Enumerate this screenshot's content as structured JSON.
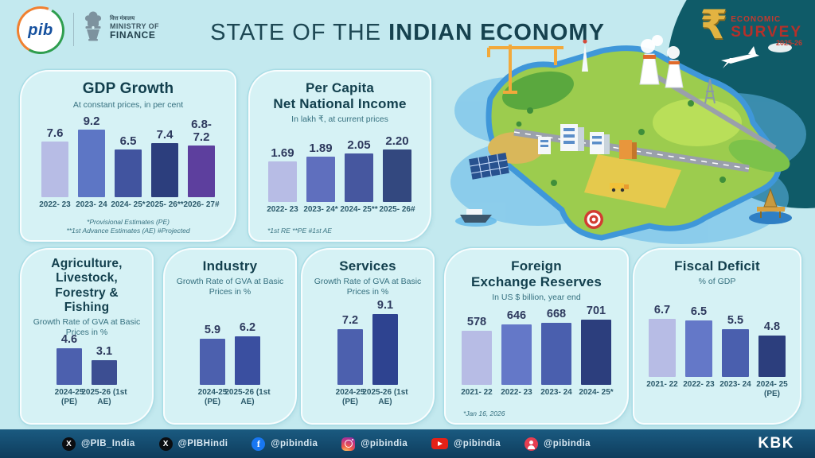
{
  "header": {
    "pib_logo_text": "pib",
    "ministry_hindi": "वित्त मंत्रालय",
    "ministry_line1": "MINISTRY OF",
    "ministry_line2": "FINANCE",
    "title_regular": "STATE OF THE ",
    "title_bold": "INDIAN ECONOMY",
    "survey_badge": {
      "rupee": "₹",
      "line1": "ECONOMIC",
      "line2": "SURVEY",
      "line3": "2025-26"
    }
  },
  "chart_data": [
    {
      "type": "bar",
      "title": "GDP Growth",
      "subtitle": "At constant prices, in per cent",
      "categories": [
        "2022- 23",
        "2023- 24",
        "2024- 25*",
        "2025- 26**",
        "2026- 27#"
      ],
      "values": [
        7.6,
        9.2,
        6.5,
        7.4,
        7.0
      ],
      "value_labels": [
        "7.6",
        "9.2",
        "6.5",
        "7.4",
        "6.8- 7.2"
      ],
      "colors": [
        "#b7bce5",
        "#5d76c5",
        "#41549f",
        "#2c3e7d",
        "#5d3f9e"
      ],
      "footnote": "*Provisional Estimates (PE)\n**1st Advance Estimates (AE)  #Projected",
      "ylim": [
        0,
        9.2
      ]
    },
    {
      "type": "bar",
      "title": "Per Capita\nNet National Income",
      "subtitle": "In lakh ₹, at current prices",
      "categories": [
        "2022- 23",
        "2023- 24*",
        "2024- 25**",
        "2025- 26#"
      ],
      "values": [
        1.69,
        1.89,
        2.05,
        2.2
      ],
      "value_labels": [
        "1.69",
        "1.89",
        "2.05",
        "2.20"
      ],
      "colors": [
        "#b7bce5",
        "#5f6fbe",
        "#46579f",
        "#33487f"
      ],
      "footnote": "*1st RE  **PE  #1st AE",
      "ylim": [
        0,
        2.2
      ]
    },
    {
      "type": "bar",
      "title": "Agriculture,\nLivestock,\nForestry &\nFishing",
      "subtitle": "Growth Rate of GVA at Basic Prices in %",
      "categories": [
        "2024-25 (PE)",
        "2025-26 (1st AE)"
      ],
      "values": [
        4.6,
        3.1
      ],
      "value_labels": [
        "4.6",
        "3.1"
      ],
      "colors": [
        "#4c60ae",
        "#3c4e92"
      ],
      "footnote": "",
      "ylim": [
        0,
        4.6
      ]
    },
    {
      "type": "bar",
      "title": "Industry",
      "subtitle": "Growth Rate of GVA at Basic Prices in %",
      "categories": [
        "2024-25 (PE)",
        "2025-26 (1st AE)"
      ],
      "values": [
        5.9,
        6.2
      ],
      "value_labels": [
        "5.9",
        "6.2"
      ],
      "colors": [
        "#4c60ae",
        "#3a4fa0"
      ],
      "footnote": "",
      "ylim": [
        0,
        6.2
      ]
    },
    {
      "type": "bar",
      "title": "Services",
      "subtitle": "Growth Rate of GVA at Basic Prices in %",
      "categories": [
        "2024-25 (PE)",
        "2025-26 (1st AE)"
      ],
      "values": [
        7.2,
        9.1
      ],
      "value_labels": [
        "7.2",
        "9.1"
      ],
      "colors": [
        "#4c60ae",
        "#2e4390"
      ],
      "footnote": "",
      "ylim": [
        0,
        9.1
      ]
    },
    {
      "type": "bar",
      "title": "Foreign\nExchange Reserves",
      "subtitle": "In US $ billion, year end",
      "categories": [
        "2021- 22",
        "2022- 23",
        "2023- 24",
        "2024- 25*"
      ],
      "values": [
        578,
        646,
        668,
        701
      ],
      "value_labels": [
        "578",
        "646",
        "668",
        "701"
      ],
      "colors": [
        "#b7bce5",
        "#6478c8",
        "#4a5fae",
        "#2c3e7d"
      ],
      "footnote": "*Jan 16, 2026",
      "ylim": [
        0,
        701
      ]
    },
    {
      "type": "bar",
      "title": "Fiscal Deficit",
      "subtitle": "% of GDP",
      "categories": [
        "2021- 22",
        "2022- 23",
        "2023- 24",
        "2024- 25 (PE)"
      ],
      "values": [
        6.7,
        6.5,
        5.5,
        4.8
      ],
      "value_labels": [
        "6.7",
        "6.5",
        "5.5",
        "4.8"
      ],
      "colors": [
        "#b7bce5",
        "#6478c8",
        "#4a5fae",
        "#2c3e7d"
      ],
      "footnote": "",
      "ylim": [
        0,
        6.7
      ]
    }
  ],
  "footer": {
    "socials": [
      {
        "icon": "x-icon",
        "handle": "@PIB_India"
      },
      {
        "icon": "x-icon",
        "handle": "@PIBHindi"
      },
      {
        "icon": "facebook-icon",
        "handle": "@pibindia"
      },
      {
        "icon": "instagram-icon",
        "handle": "@pibindia"
      },
      {
        "icon": "youtube-icon",
        "handle": "@pibindia"
      },
      {
        "icon": "person-icon",
        "handle": "@pibindia"
      }
    ],
    "credit": "KBK"
  },
  "colors": {
    "page_bg": "#c3e9ef",
    "card_bg": "#d6f2f5",
    "teal_corner": "#0f5b68",
    "footer_top": "#1a5a80",
    "footer_bottom": "#0e3d5d",
    "title_text": "#1d4753",
    "value_text": "#2e3a5e",
    "rupee_gold": "#e3b341",
    "survey_red": "#b5302a"
  }
}
